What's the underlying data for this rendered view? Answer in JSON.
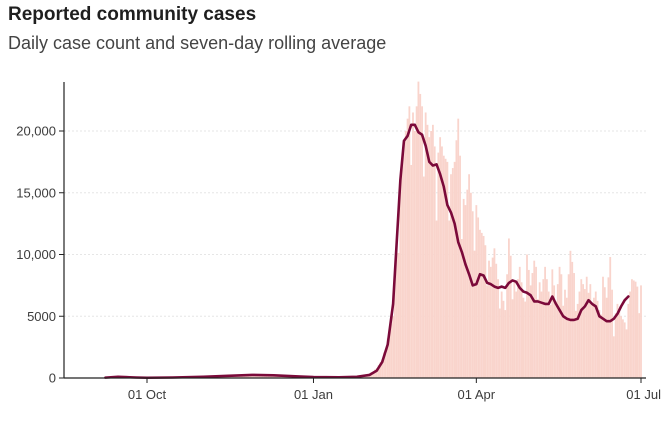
{
  "title": "Reported community cases",
  "subtitle": "Daily case count and seven-day rolling average",
  "colors": {
    "bars": "#f9d4cc",
    "line": "#7b0a3a",
    "axis": "#222222",
    "grid": "#e6e6e6"
  },
  "chart_data": {
    "type": "bar",
    "title": "Reported community cases",
    "subtitle": "Daily case count and seven-day rolling average",
    "xlabel": "",
    "ylabel": "",
    "x_range": [
      "2021-09-08",
      "2022-07-02"
    ],
    "ylim": [
      0,
      24000
    ],
    "grid": true,
    "x_ticks": [
      {
        "date": "2021-10-01",
        "label": "01 Oct"
      },
      {
        "date": "2022-01-01",
        "label": "01 Jan"
      },
      {
        "date": "2022-04-01",
        "label": "01 Apr"
      },
      {
        "date": "2022-07-01",
        "label": "01 Jul"
      }
    ],
    "y_ticks": [
      {
        "value": 0,
        "label": "0"
      },
      {
        "value": 5000,
        "label": "5000"
      },
      {
        "value": 10000,
        "label": "10,000"
      },
      {
        "value": 15000,
        "label": "15,000"
      },
      {
        "value": 20000,
        "label": "20,000"
      }
    ],
    "series": [
      {
        "type": "bar",
        "points": [
          [
            "2021-09-10",
            80
          ],
          [
            "2021-09-20",
            40
          ],
          [
            "2021-10-01",
            30
          ],
          [
            "2021-10-15",
            70
          ],
          [
            "2021-11-01",
            150
          ],
          [
            "2021-11-15",
            200
          ],
          [
            "2021-12-01",
            220
          ],
          [
            "2021-12-15",
            150
          ],
          [
            "2022-01-01",
            60
          ],
          [
            "2022-01-15",
            60
          ],
          [
            "2022-01-25",
            150
          ],
          [
            "2022-02-01",
            350
          ],
          [
            "2022-02-05",
            800
          ],
          [
            "2022-02-08",
            1500
          ],
          [
            "2022-02-11",
            3200
          ],
          [
            "2022-02-14",
            5000
          ],
          [
            "2022-02-16",
            11000
          ],
          [
            "2022-02-18",
            16000
          ],
          [
            "2022-02-20",
            19000
          ],
          [
            "2022-02-22",
            21000
          ],
          [
            "2022-02-24",
            23000
          ],
          [
            "2022-02-26",
            20000
          ],
          [
            "2022-02-28",
            24000
          ],
          [
            "2022-03-02",
            22000
          ],
          [
            "2022-03-04",
            21500
          ],
          [
            "2022-03-06",
            19500
          ],
          [
            "2022-03-08",
            20500
          ],
          [
            "2022-03-10",
            17000
          ],
          [
            "2022-03-12",
            19500
          ],
          [
            "2022-03-14",
            18000
          ],
          [
            "2022-03-16",
            17500
          ],
          [
            "2022-03-18",
            16500
          ],
          [
            "2022-03-20",
            17500
          ],
          [
            "2022-03-22",
            21000
          ],
          [
            "2022-03-24",
            15000
          ],
          [
            "2022-03-26",
            14000
          ],
          [
            "2022-03-28",
            16500
          ],
          [
            "2022-03-30",
            13500
          ],
          [
            "2022-04-01",
            14000
          ],
          [
            "2022-04-03",
            12000
          ],
          [
            "2022-04-05",
            11500
          ],
          [
            "2022-04-07",
            10000
          ],
          [
            "2022-04-09",
            9000
          ],
          [
            "2022-04-11",
            10500
          ],
          [
            "2022-04-13",
            8000
          ],
          [
            "2022-04-15",
            7000
          ],
          [
            "2022-04-17",
            5500
          ],
          [
            "2022-04-19",
            11300
          ],
          [
            "2022-04-21",
            8500
          ],
          [
            "2022-04-23",
            7000
          ],
          [
            "2022-04-25",
            9000
          ],
          [
            "2022-04-27",
            6500
          ],
          [
            "2022-04-29",
            10000
          ],
          [
            "2022-05-01",
            7500
          ],
          [
            "2022-05-03",
            9500
          ],
          [
            "2022-05-05",
            8500
          ],
          [
            "2022-05-07",
            7000
          ],
          [
            "2022-05-09",
            9000
          ],
          [
            "2022-05-11",
            7000
          ],
          [
            "2022-05-13",
            8800
          ],
          [
            "2022-05-15",
            6200
          ],
          [
            "2022-05-17",
            9000
          ],
          [
            "2022-05-19",
            7800
          ],
          [
            "2022-05-21",
            6500
          ],
          [
            "2022-05-23",
            10300
          ],
          [
            "2022-05-25",
            8500
          ],
          [
            "2022-05-27",
            6000
          ],
          [
            "2022-05-29",
            8000
          ],
          [
            "2022-05-31",
            7200
          ],
          [
            "2022-06-02",
            9200
          ],
          [
            "2022-06-04",
            6000
          ],
          [
            "2022-06-06",
            7000
          ],
          [
            "2022-06-08",
            5500
          ],
          [
            "2022-06-10",
            8200
          ],
          [
            "2022-06-12",
            6500
          ],
          [
            "2022-06-14",
            9800
          ],
          [
            "2022-06-16",
            4500
          ],
          [
            "2022-06-18",
            6000
          ],
          [
            "2022-06-20",
            5000
          ],
          [
            "2022-06-22",
            4500
          ],
          [
            "2022-06-24",
            6000
          ],
          [
            "2022-06-26",
            8000
          ],
          [
            "2022-06-28",
            7800
          ],
          [
            "2022-06-30",
            7000
          ],
          [
            "2022-07-01",
            7500
          ]
        ]
      },
      {
        "type": "line",
        "points": [
          [
            "2021-09-08",
            30
          ],
          [
            "2021-09-15",
            100
          ],
          [
            "2021-09-25",
            40
          ],
          [
            "2021-10-01",
            20
          ],
          [
            "2021-10-15",
            40
          ],
          [
            "2021-11-01",
            100
          ],
          [
            "2021-11-15",
            180
          ],
          [
            "2021-11-28",
            250
          ],
          [
            "2021-12-10",
            220
          ],
          [
            "2021-12-25",
            120
          ],
          [
            "2022-01-01",
            80
          ],
          [
            "2022-01-15",
            60
          ],
          [
            "2022-01-25",
            100
          ],
          [
            "2022-02-01",
            250
          ],
          [
            "2022-02-05",
            600
          ],
          [
            "2022-02-08",
            1300
          ],
          [
            "2022-02-11",
            2700
          ],
          [
            "2022-02-14",
            6000
          ],
          [
            "2022-02-16",
            11000
          ],
          [
            "2022-02-18",
            16000
          ],
          [
            "2022-02-20",
            19200
          ],
          [
            "2022-02-22",
            19600
          ],
          [
            "2022-02-24",
            20500
          ],
          [
            "2022-02-26",
            20500
          ],
          [
            "2022-02-28",
            19900
          ],
          [
            "2022-03-02",
            19700
          ],
          [
            "2022-03-04",
            18800
          ],
          [
            "2022-03-06",
            17500
          ],
          [
            "2022-03-08",
            17200
          ],
          [
            "2022-03-10",
            17300
          ],
          [
            "2022-03-12",
            16500
          ],
          [
            "2022-03-14",
            15500
          ],
          [
            "2022-03-16",
            14000
          ],
          [
            "2022-03-18",
            13400
          ],
          [
            "2022-03-20",
            12500
          ],
          [
            "2022-03-22",
            11000
          ],
          [
            "2022-03-24",
            10200
          ],
          [
            "2022-03-26",
            9200
          ],
          [
            "2022-03-28",
            8400
          ],
          [
            "2022-03-30",
            7500
          ],
          [
            "2022-04-01",
            7600
          ],
          [
            "2022-04-03",
            8400
          ],
          [
            "2022-04-05",
            8300
          ],
          [
            "2022-04-07",
            7700
          ],
          [
            "2022-04-09",
            7600
          ],
          [
            "2022-04-11",
            7400
          ],
          [
            "2022-04-13",
            7300
          ],
          [
            "2022-04-15",
            7400
          ],
          [
            "2022-04-17",
            7300
          ],
          [
            "2022-04-19",
            7700
          ],
          [
            "2022-04-21",
            7900
          ],
          [
            "2022-04-23",
            7800
          ],
          [
            "2022-04-25",
            7300
          ],
          [
            "2022-04-27",
            7000
          ],
          [
            "2022-04-29",
            6900
          ],
          [
            "2022-05-01",
            6700
          ],
          [
            "2022-05-03",
            6200
          ],
          [
            "2022-05-05",
            6200
          ],
          [
            "2022-05-07",
            6100
          ],
          [
            "2022-05-09",
            6000
          ],
          [
            "2022-05-11",
            6000
          ],
          [
            "2022-05-13",
            6600
          ],
          [
            "2022-05-15",
            6000
          ],
          [
            "2022-05-17",
            5500
          ],
          [
            "2022-05-19",
            5000
          ],
          [
            "2022-05-21",
            4800
          ],
          [
            "2022-05-23",
            4700
          ],
          [
            "2022-05-25",
            4700
          ],
          [
            "2022-05-27",
            4800
          ],
          [
            "2022-05-29",
            5500
          ],
          [
            "2022-05-31",
            5800
          ],
          [
            "2022-06-02",
            6300
          ],
          [
            "2022-06-04",
            6000
          ],
          [
            "2022-06-06",
            5800
          ],
          [
            "2022-06-08",
            5000
          ],
          [
            "2022-06-10",
            4800
          ],
          [
            "2022-06-12",
            4600
          ],
          [
            "2022-06-14",
            4600
          ],
          [
            "2022-06-16",
            4800
          ],
          [
            "2022-06-18",
            5200
          ],
          [
            "2022-06-20",
            5800
          ],
          [
            "2022-06-22",
            6300
          ],
          [
            "2022-06-24",
            6600
          ]
        ]
      }
    ]
  }
}
